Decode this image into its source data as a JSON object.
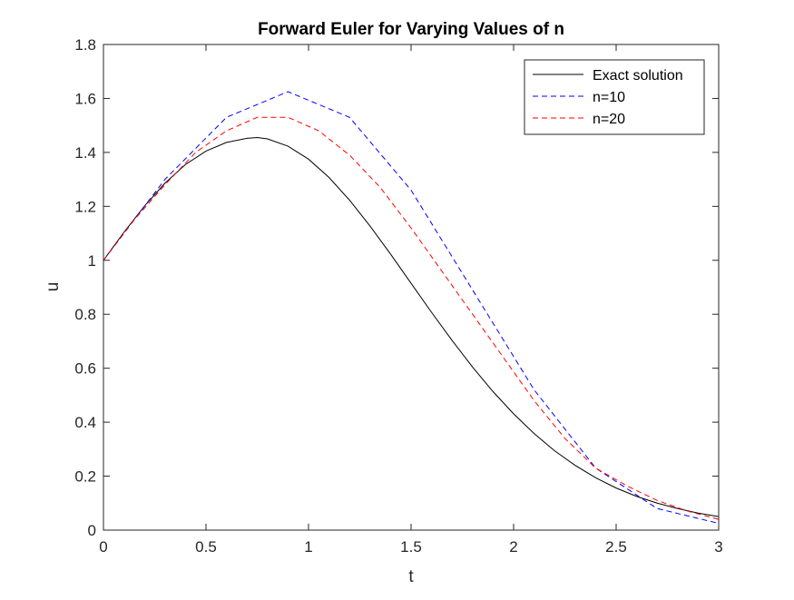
{
  "chart_data": {
    "type": "line",
    "title": "Forward Euler for Varying Values of n",
    "xlabel": "t",
    "ylabel": "u",
    "xlim": [
      0,
      3
    ],
    "ylim": [
      0,
      1.8
    ],
    "xticks": [
      0,
      0.5,
      1,
      1.5,
      2,
      2.5,
      3
    ],
    "xtick_labels": [
      "0",
      "0.5",
      "1",
      "1.5",
      "2",
      "2.5",
      "3"
    ],
    "yticks": [
      0,
      0.2,
      0.4,
      0.6,
      0.8,
      1,
      1.2,
      1.4,
      1.6,
      1.8
    ],
    "ytick_labels": [
      "0",
      "0.2",
      "0.4",
      "0.6",
      "0.8",
      "1",
      "1.2",
      "1.4",
      "1.6",
      "1.8"
    ],
    "grid": false,
    "legend_position": "top-right",
    "series": [
      {
        "name": "Exact solution",
        "color": "#000000",
        "style": "solid",
        "x": [
          0,
          0.1,
          0.2,
          0.3,
          0.4,
          0.5,
          0.6,
          0.7,
          0.75,
          0.8,
          0.9,
          1.0,
          1.1,
          1.2,
          1.3,
          1.4,
          1.5,
          1.6,
          1.7,
          1.8,
          1.9,
          2.0,
          2.1,
          2.2,
          2.3,
          2.4,
          2.5,
          2.6,
          2.7,
          2.8,
          2.9,
          3.0
        ],
        "y": [
          1.0,
          1.104,
          1.201,
          1.286,
          1.355,
          1.405,
          1.437,
          1.452,
          1.455,
          1.45,
          1.423,
          1.375,
          1.307,
          1.223,
          1.127,
          1.023,
          0.915,
          0.807,
          0.703,
          0.604,
          0.513,
          0.431,
          0.358,
          0.294,
          0.24,
          0.194,
          0.156,
          0.125,
          0.1,
          0.08,
          0.063,
          0.05
        ]
      },
      {
        "name": "n=10",
        "color": "#0000ff",
        "style": "dashed",
        "x": [
          0,
          0.3,
          0.6,
          0.9,
          1.2,
          1.5,
          1.8,
          2.1,
          2.4,
          2.7,
          3.0
        ],
        "y": [
          1.0,
          1.3,
          1.53,
          1.625,
          1.53,
          1.26,
          0.89,
          0.52,
          0.23,
          0.08,
          0.025
        ]
      },
      {
        "name": "n=20",
        "color": "#ff0000",
        "style": "dashed",
        "x": [
          0,
          0.15,
          0.3,
          0.45,
          0.6,
          0.75,
          0.9,
          1.05,
          1.2,
          1.35,
          1.5,
          1.65,
          1.8,
          1.95,
          2.1,
          2.25,
          2.4,
          2.55,
          2.7,
          2.85,
          3.0
        ],
        "y": [
          1.0,
          1.15,
          1.28,
          1.4,
          1.48,
          1.53,
          1.53,
          1.48,
          1.39,
          1.27,
          1.12,
          0.96,
          0.8,
          0.64,
          0.48,
          0.34,
          0.23,
          0.165,
          0.11,
          0.07,
          0.04
        ]
      }
    ]
  }
}
